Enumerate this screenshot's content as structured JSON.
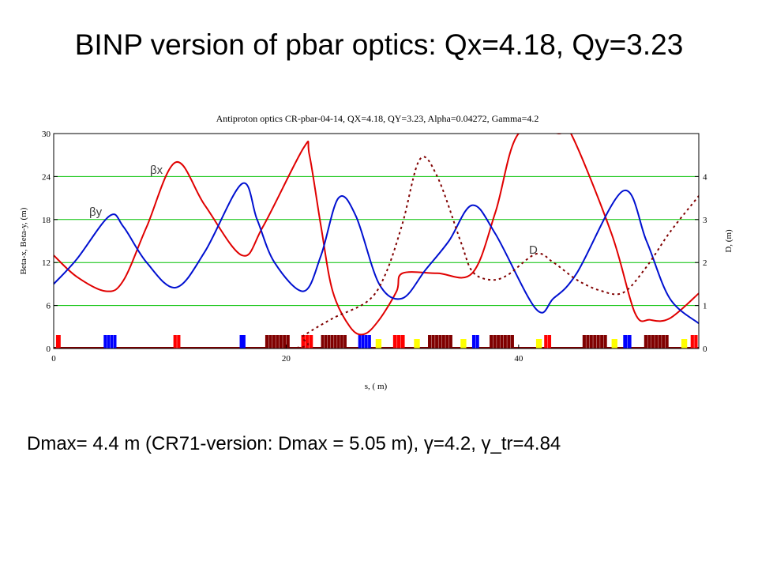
{
  "slide": {
    "title": "BINP version of pbar optics:  Qx=4.18, Qy=3.23",
    "footer": "Dmax= 4.4 m   (CR71-version:  Dmax = 5.05 m),     γ=4.2,    γ_tr=4.84"
  },
  "chart_data": {
    "type": "line",
    "title": "Antiproton optics CR-pbar-04-14,  QX=4.18,  QY=3.23,  Alpha=0.04272,  Gamma=4.2",
    "xlabel": "s, ( m)",
    "ylabel_left": "Beta-x, Beta-y, (m)",
    "ylabel_right": "D, (m)",
    "xlim": [
      0,
      55.5
    ],
    "ylim_left": [
      0,
      30
    ],
    "ylim_right": [
      0,
      5
    ],
    "x_ticks": [
      "0",
      "20",
      "40"
    ],
    "y_left_ticks": [
      "0",
      "6",
      "12",
      "18",
      "24",
      "30"
    ],
    "y_right_ticks": [
      "0",
      "1",
      "2",
      "3",
      "4"
    ],
    "grid": "horizontal",
    "colors": {
      "beta_x": "#e00000",
      "beta_y": "#0010d0",
      "dispersion": "#800000",
      "grid": "#00c000",
      "element_red": "#ff0000",
      "element_blue": "#0000ff",
      "element_darkred": "#800000",
      "element_yellow": "#ffff00"
    },
    "series": [
      {
        "name": "βx",
        "axis": "left",
        "style": "solid",
        "x": [
          0,
          2,
          4.5,
          6,
          8,
          10.5,
          13,
          16.2,
          18,
          21.5,
          22,
          23,
          24,
          25.5,
          26.7,
          28,
          29.5,
          30,
          33,
          36,
          38,
          40,
          43.5,
          44.5,
          48,
          50,
          51.3,
          53,
          55.5
        ],
        "y": [
          13,
          10,
          8,
          9.5,
          17,
          26,
          20,
          13,
          17,
          28,
          27,
          17,
          8,
          3,
          2,
          4,
          8,
          10.5,
          10.5,
          10.5,
          19,
          30,
          30,
          30,
          16,
          5,
          4,
          4.2,
          7.7
        ]
      },
      {
        "name": "βy",
        "axis": "left",
        "style": "solid",
        "x": [
          0,
          2,
          4.8,
          6,
          8,
          10.5,
          13,
          16.2,
          17.5,
          19,
          21.5,
          23,
          24.5,
          26,
          28,
          30,
          32,
          34,
          36,
          38,
          41.5,
          43,
          45,
          49,
          51,
          53,
          55.5
        ],
        "y": [
          9,
          12.5,
          18.5,
          17,
          12,
          8.5,
          13.5,
          23,
          18,
          12,
          8,
          13,
          21,
          18.5,
          9,
          7,
          11,
          15,
          20,
          16,
          5.5,
          7,
          10.5,
          22,
          15,
          7,
          3.5
        ]
      },
      {
        "name": "D",
        "axis": "right",
        "style": "dashed",
        "x": [
          0,
          20,
          21.5,
          24,
          27,
          28.5,
          30,
          31.5,
          33,
          35,
          36,
          37.5,
          39,
          41.5,
          43,
          45,
          47,
          49,
          51,
          53,
          55.5
        ],
        "y": [
          0,
          0,
          0.3,
          0.7,
          1.1,
          1.7,
          2.9,
          4.4,
          4.0,
          2.5,
          1.8,
          1.6,
          1.7,
          2.2,
          2.0,
          1.6,
          1.35,
          1.3,
          1.9,
          2.7,
          3.55
        ]
      }
    ],
    "lattice_elements": [
      {
        "type": "red",
        "s": [
          0.2,
          0.6
        ]
      },
      {
        "type": "blue",
        "s": [
          4.3,
          5.4
        ]
      },
      {
        "type": "red",
        "s": [
          10.3,
          10.9
        ]
      },
      {
        "type": "blue",
        "s": [
          16.0,
          16.5
        ]
      },
      {
        "type": "darkred",
        "s": [
          18.2,
          20.3
        ]
      },
      {
        "type": "red",
        "s": [
          21.3,
          22.3
        ]
      },
      {
        "type": "darkred",
        "s": [
          23.0,
          25.2
        ]
      },
      {
        "type": "blue",
        "s": [
          26.2,
          27.3
        ]
      },
      {
        "type": "yellow",
        "s": [
          27.7,
          28.2
        ]
      },
      {
        "type": "red",
        "s": [
          29.2,
          30.2
        ]
      },
      {
        "type": "yellow",
        "s": [
          31.0,
          31.5
        ]
      },
      {
        "type": "darkred",
        "s": [
          32.2,
          34.3
        ]
      },
      {
        "type": "yellow",
        "s": [
          35.0,
          35.5
        ]
      },
      {
        "type": "blue",
        "s": [
          36.0,
          36.6
        ]
      },
      {
        "type": "darkred",
        "s": [
          37.5,
          39.6
        ]
      },
      {
        "type": "yellow",
        "s": [
          41.5,
          42.0
        ]
      },
      {
        "type": "red",
        "s": [
          42.2,
          42.8
        ]
      },
      {
        "type": "darkred",
        "s": [
          45.5,
          47.6
        ]
      },
      {
        "type": "yellow",
        "s": [
          48.0,
          48.5
        ]
      },
      {
        "type": "blue",
        "s": [
          49.0,
          49.7
        ]
      },
      {
        "type": "darkred",
        "s": [
          50.8,
          52.9
        ]
      },
      {
        "type": "yellow",
        "s": [
          54.0,
          54.5
        ]
      },
      {
        "type": "red",
        "s": [
          54.8,
          55.4
        ]
      }
    ]
  }
}
